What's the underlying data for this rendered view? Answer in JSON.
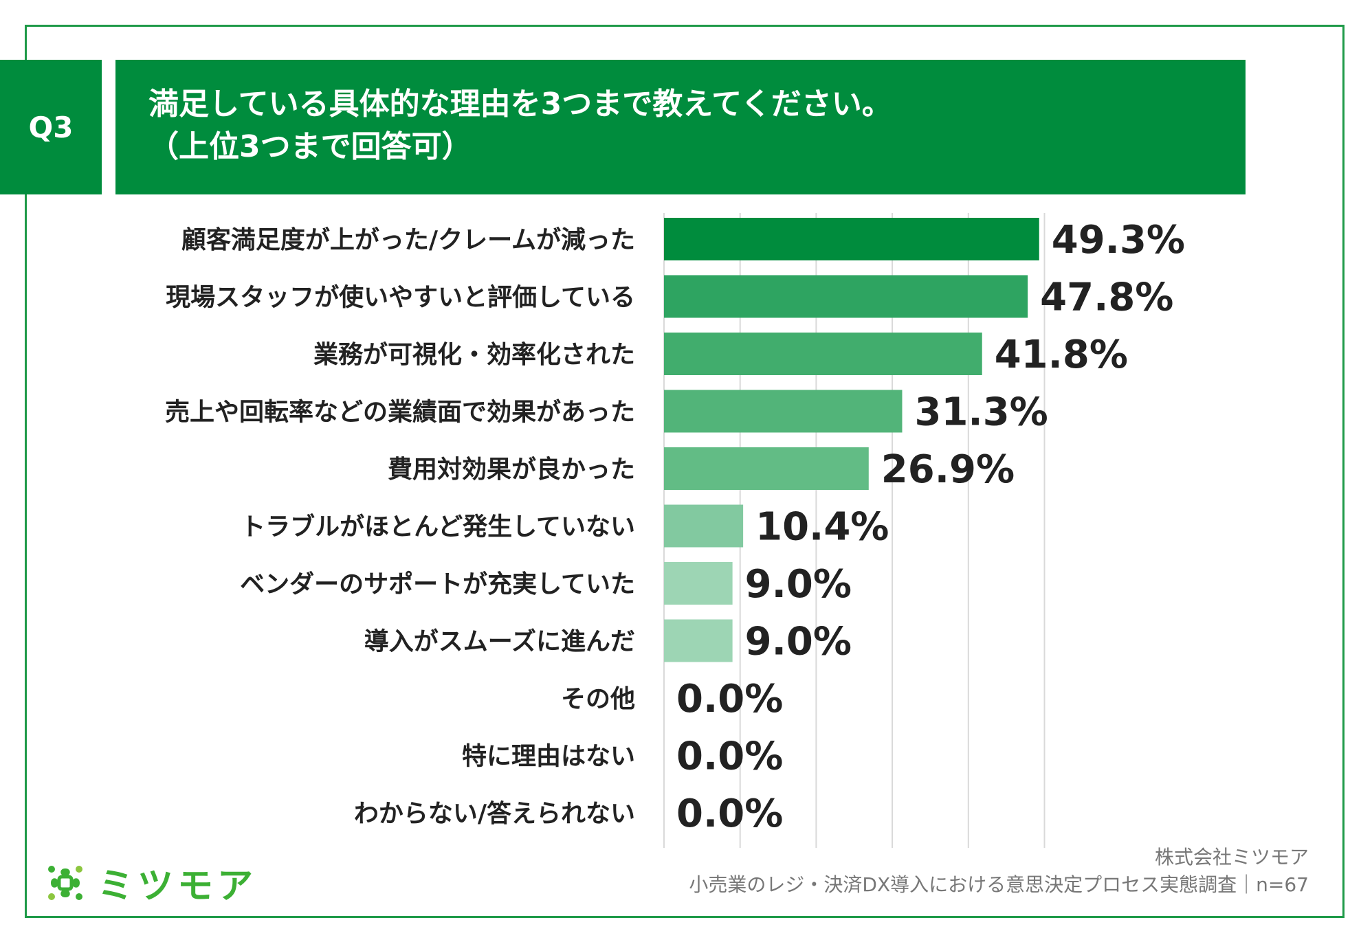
{
  "question": {
    "number": "Q3",
    "title_line1": "満足している具体的な理由を3つまで教えてください。",
    "title_line2": "（上位3つまで回答可）"
  },
  "chart_data": {
    "type": "bar",
    "orientation": "horizontal",
    "categories": [
      "顧客満足度が上がった/クレームが減った",
      "現場スタッフが使いやすいと評価している",
      "業務が可視化・効率化された",
      "売上や回転率などの業績面で効果があった",
      "費用対効果が良かった",
      "トラブルがほとんど発生していない",
      "ベンダーのサポートが充実していた",
      "導入がスムーズに進んだ",
      "その他",
      "特に理由はない",
      "わからない/答えられない"
    ],
    "values": [
      49.3,
      47.8,
      41.8,
      31.3,
      26.9,
      10.4,
      9.0,
      9.0,
      0.0,
      0.0,
      0.0
    ],
    "value_labels": [
      "49.3%",
      "47.8%",
      "41.8%",
      "31.3%",
      "26.9%",
      "10.4%",
      "9.0%",
      "9.0%",
      "0.0%",
      "0.0%",
      "0.0%"
    ],
    "xlim": [
      0,
      60
    ],
    "grid": true,
    "bar_colors": [
      "#008c3d",
      "#2ea461",
      "#41ad6d",
      "#52b479",
      "#62bc85",
      "#82c9a0",
      "#9dd5b4",
      "#9dd5b4",
      "#9dd5b4",
      "#9dd5b4",
      "#9dd5b4"
    ],
    "grid_color": "#d9d9d9"
  },
  "footer": {
    "logo_text": "ミツモア",
    "company": "株式会社ミツモア",
    "survey": "小売業のレジ・決済DX導入における意思決定プロセス実態調査｜n=67"
  },
  "colors": {
    "brand_green": "#008c3d",
    "logo_green": "#3cb034",
    "border_green": "#1e9a48"
  }
}
